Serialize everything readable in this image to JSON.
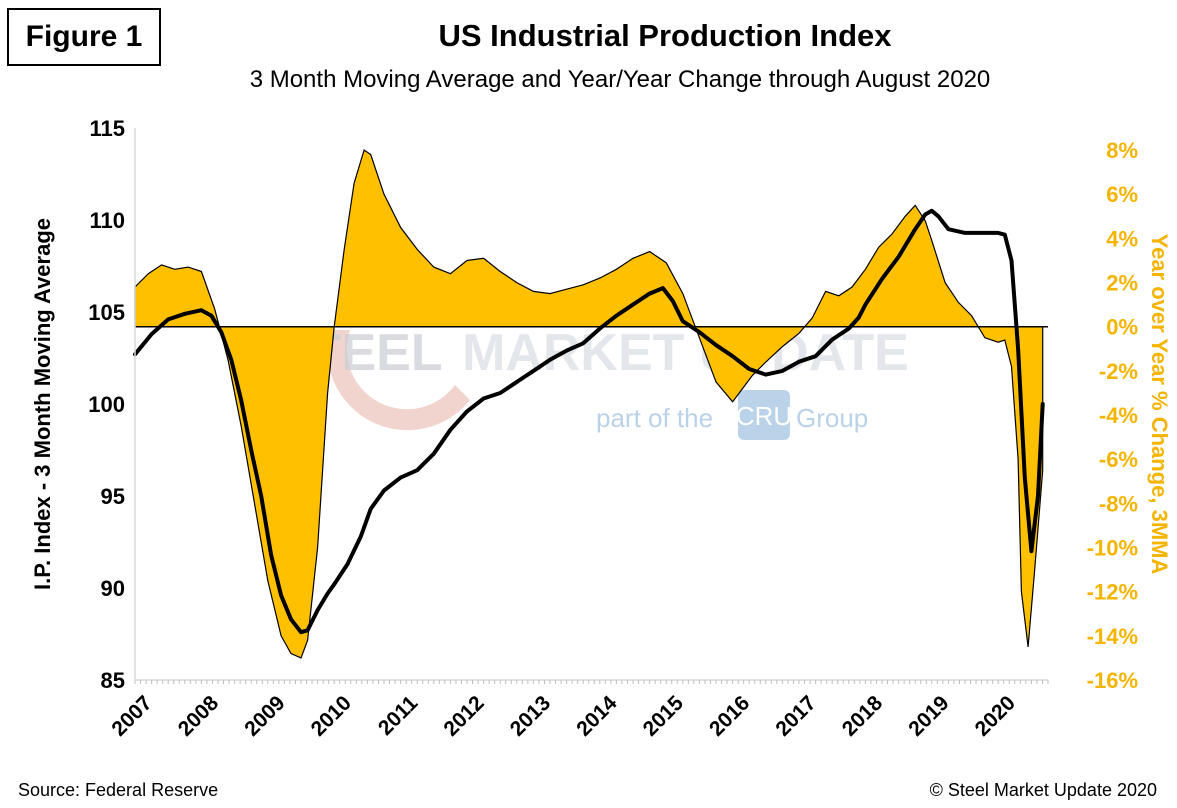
{
  "figure_label": "Figure 1",
  "title": "US Industrial Production Index",
  "subtitle": "3 Month Moving Average and Year/Year Change through August 2020",
  "footer": {
    "source": "Source: Federal Reserve",
    "copyright": "© Steel Market Update 2020"
  },
  "watermark": {
    "word1": "STEEL",
    "word2": "MARKET UPDATE",
    "tagline_pre": "part of the",
    "logo": "CRU",
    "tagline_post": "Group"
  },
  "chart_data": {
    "type": "line+area",
    "xlabel": "",
    "ylabel_left": "I.P. Index - 3 Month Moving Average",
    "ylabel_right": "Year over Year % Change, 3MMA",
    "ylim_left": [
      85,
      115
    ],
    "ylim_right": [
      -16,
      9
    ],
    "xlim": [
      2007.0,
      2020.75
    ],
    "x_ticks": [
      "2007",
      "2008",
      "2009",
      "2010",
      "2011",
      "2012",
      "2013",
      "2014",
      "2015",
      "2016",
      "2017",
      "2018",
      "2019",
      "2020"
    ],
    "y_ticks_left": [
      "85",
      "90",
      "95",
      "100",
      "105",
      "110",
      "115"
    ],
    "y_ticks_right": [
      "-16%",
      "-14%",
      "-12%",
      "-10%",
      "-8%",
      "-6%",
      "-4%",
      "-2%",
      "0%",
      "2%",
      "4%",
      "6%",
      "8%"
    ],
    "colors": {
      "area": "#FFC000",
      "line": "#000000",
      "right_axis": "#F5B400"
    },
    "series": [
      {
        "name": "I.P. Index - 3 Month Moving Average",
        "x": [
          2007.0,
          2007.25,
          2007.5,
          2007.75,
          2008.0,
          2008.15,
          2008.3,
          2008.45,
          2008.6,
          2008.75,
          2008.9,
          2009.05,
          2009.2,
          2009.35,
          2009.5,
          2009.6,
          2009.75,
          2009.9,
          2010.0,
          2010.2,
          2010.4,
          2010.55,
          2010.75,
          2011.0,
          2011.25,
          2011.5,
          2011.75,
          2012.0,
          2012.25,
          2012.5,
          2012.75,
          2013.0,
          2013.25,
          2013.5,
          2013.75,
          2014.0,
          2014.25,
          2014.5,
          2014.75,
          2014.95,
          2015.1,
          2015.25,
          2015.5,
          2015.75,
          2016.0,
          2016.25,
          2016.5,
          2016.75,
          2017.0,
          2017.25,
          2017.5,
          2017.75,
          2017.9,
          2018.0,
          2018.25,
          2018.5,
          2018.75,
          2018.9,
          2019.0,
          2019.1,
          2019.25,
          2019.5,
          2019.75,
          2020.0,
          2020.1,
          2020.2,
          2020.3,
          2020.4,
          2020.5,
          2020.6,
          2020.67
        ],
        "values": [
          102.7,
          103.8,
          104.6,
          104.9,
          105.1,
          104.8,
          103.9,
          102.4,
          100.2,
          97.5,
          95.0,
          91.8,
          89.6,
          88.3,
          87.6,
          87.7,
          88.8,
          89.7,
          90.2,
          91.3,
          92.8,
          94.3,
          95.3,
          96.0,
          96.4,
          97.3,
          98.6,
          99.6,
          100.3,
          100.6,
          101.2,
          101.8,
          102.4,
          102.9,
          103.3,
          104.1,
          104.8,
          105.4,
          106.0,
          106.3,
          105.6,
          104.5,
          103.9,
          103.2,
          102.6,
          101.9,
          101.6,
          101.8,
          102.3,
          102.6,
          103.5,
          104.1,
          104.7,
          105.4,
          106.8,
          108.0,
          109.5,
          110.3,
          110.5,
          110.2,
          109.5,
          109.3,
          109.3,
          109.3,
          109.2,
          107.8,
          103.0,
          96.0,
          92.0,
          95.0,
          100.0
        ]
      },
      {
        "name": "Year over Year % Change, 3MMA",
        "x": [
          2007.0,
          2007.2,
          2007.4,
          2007.6,
          2007.8,
          2008.0,
          2008.2,
          2008.4,
          2008.6,
          2008.8,
          2009.0,
          2009.2,
          2009.35,
          2009.5,
          2009.6,
          2009.75,
          2009.9,
          2010.0,
          2010.15,
          2010.3,
          2010.45,
          2010.55,
          2010.75,
          2011.0,
          2011.25,
          2011.5,
          2011.75,
          2012.0,
          2012.25,
          2012.5,
          2012.75,
          2013.0,
          2013.25,
          2013.5,
          2013.75,
          2014.0,
          2014.25,
          2014.5,
          2014.75,
          2015.0,
          2015.25,
          2015.5,
          2015.75,
          2016.0,
          2016.15,
          2016.3,
          2016.5,
          2016.75,
          2017.0,
          2017.2,
          2017.4,
          2017.6,
          2017.8,
          2018.0,
          2018.2,
          2018.4,
          2018.6,
          2018.75,
          2018.9,
          2019.0,
          2019.2,
          2019.4,
          2019.6,
          2019.8,
          2020.0,
          2020.1,
          2020.2,
          2020.3,
          2020.35,
          2020.45,
          2020.55,
          2020.67
        ],
        "values": [
          1.8,
          2.4,
          2.8,
          2.6,
          2.7,
          2.5,
          0.8,
          -1.5,
          -4.5,
          -8.0,
          -11.5,
          -14.0,
          -14.8,
          -15.0,
          -14.2,
          -10.0,
          -3.0,
          0.0,
          3.5,
          6.5,
          8.0,
          7.8,
          6.0,
          4.5,
          3.5,
          2.7,
          2.4,
          3.0,
          3.1,
          2.5,
          2.0,
          1.6,
          1.5,
          1.7,
          1.9,
          2.2,
          2.6,
          3.1,
          3.4,
          2.9,
          1.5,
          -0.5,
          -2.5,
          -3.4,
          -2.8,
          -2.2,
          -1.6,
          -0.9,
          -0.3,
          0.4,
          1.6,
          1.4,
          1.8,
          2.6,
          3.6,
          4.2,
          5.0,
          5.5,
          4.8,
          3.9,
          2.0,
          1.1,
          0.5,
          -0.5,
          -0.7,
          -0.6,
          -1.8,
          -6.0,
          -12.0,
          -14.5,
          -11.0,
          -6.5
        ]
      }
    ]
  }
}
